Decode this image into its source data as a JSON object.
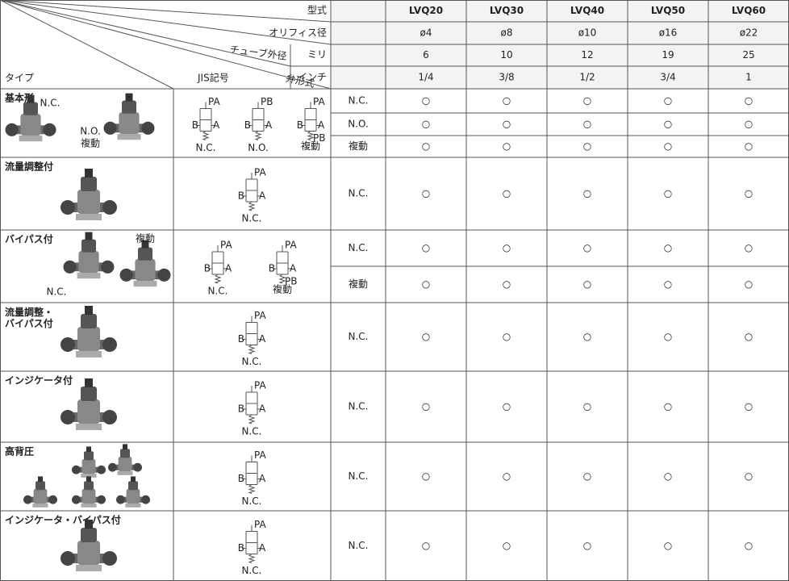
{
  "header": {
    "model_label": "型式",
    "orifice_label": "オリフィス径",
    "tube_label": "チューブ外径",
    "mm_label": "ミリ",
    "inch_label": "インチ",
    "valve_label": "弁形式",
    "type_label": "タイプ",
    "jis_label": "JIS記号"
  },
  "models": [
    "LVQ20",
    "LVQ30",
    "LVQ40",
    "LVQ50",
    "LVQ60"
  ],
  "orifice": [
    "ø4",
    "ø8",
    "ø10",
    "ø16",
    "ø22"
  ],
  "mm": [
    "6",
    "10",
    "12",
    "19",
    "25"
  ],
  "inch": [
    "1/4",
    "3/8",
    "1/2",
    "3/4",
    "1"
  ],
  "groups": [
    {
      "type": "基本形",
      "photo_labels": [
        "N.C.",
        "N.O.",
        "複動"
      ],
      "symbols": [
        {
          "top": "PA",
          "left": "B",
          "right": "A",
          "caption": "N.C."
        },
        {
          "top": "PB",
          "left": "B",
          "right": "A",
          "caption": "N.O."
        },
        {
          "top": "PA",
          "left": "B",
          "right": "A",
          "bottom": "PB",
          "caption": "複動"
        }
      ],
      "rows": [
        {
          "valve": "N.C.",
          "marks": [
            "○",
            "○",
            "○",
            "○",
            "○"
          ]
        },
        {
          "valve": "N.O.",
          "marks": [
            "○",
            "○",
            "○",
            "○",
            "○"
          ]
        },
        {
          "valve": "複動",
          "marks": [
            "○",
            "○",
            "○",
            "○",
            "○"
          ]
        }
      ]
    },
    {
      "type": "流量調整付",
      "photo_labels": [],
      "symbols": [
        {
          "top": "PA",
          "left": "B",
          "right": "A",
          "caption": "N.C."
        }
      ],
      "rows": [
        {
          "valve": "N.C.",
          "marks": [
            "○",
            "○",
            "○",
            "○",
            "○"
          ]
        }
      ]
    },
    {
      "type": "バイパス付",
      "photo_labels": [
        "複動",
        "N.C."
      ],
      "symbols": [
        {
          "top": "PA",
          "left": "B",
          "right": "A",
          "caption": "N.C."
        },
        {
          "top": "PA",
          "left": "B",
          "right": "A",
          "bottom": "PB",
          "caption": "複動"
        }
      ],
      "rows": [
        {
          "valve": "N.C.",
          "marks": [
            "○",
            "○",
            "○",
            "○",
            "○"
          ]
        },
        {
          "valve": "複動",
          "marks": [
            "○",
            "○",
            "○",
            "○",
            "○"
          ]
        }
      ]
    },
    {
      "type": "流量調整・\nバイパス付",
      "photo_labels": [],
      "symbols": [
        {
          "top": "PA",
          "left": "B",
          "right": "A",
          "caption": "N.C."
        }
      ],
      "rows": [
        {
          "valve": "N.C.",
          "marks": [
            "○",
            "○",
            "○",
            "○",
            "○"
          ]
        }
      ]
    },
    {
      "type": "インジケータ付",
      "photo_labels": [],
      "symbols": [
        {
          "top": "PA",
          "left": "B",
          "right": "A",
          "caption": "N.C."
        }
      ],
      "rows": [
        {
          "valve": "N.C.",
          "marks": [
            "○",
            "○",
            "○",
            "○",
            "○"
          ]
        }
      ]
    },
    {
      "type": "高背圧",
      "photo_labels": [],
      "symbols": [
        {
          "top": "PA",
          "left": "B",
          "right": "A",
          "caption": "N.C."
        }
      ],
      "rows": [
        {
          "valve": "N.C.",
          "marks": [
            "○",
            "○",
            "○",
            "○",
            "○"
          ]
        }
      ]
    },
    {
      "type": "インジケータ・バイパス付",
      "photo_labels": [],
      "symbols": [
        {
          "top": "PA",
          "left": "B",
          "right": "A",
          "caption": "N.C."
        }
      ],
      "rows": [
        {
          "valve": "N.C.",
          "marks": [
            "○",
            "○",
            "○",
            "○",
            "○"
          ]
        }
      ]
    }
  ]
}
